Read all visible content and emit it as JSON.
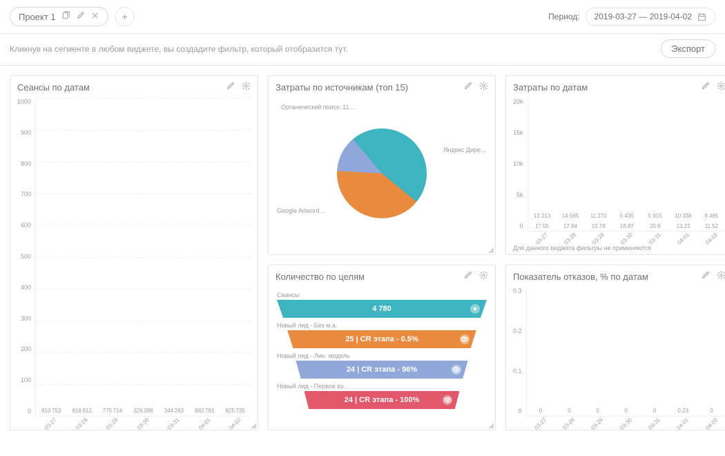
{
  "header": {
    "project_tab_label": "Проект 1",
    "period_label": "Период:",
    "period_range": "2019-03-27 — 2019-04-02"
  },
  "hintbar": {
    "hint": "Кликнув на сегменте в любом виджете, вы создадите фильтр, который отобразится тут.",
    "export_label": "Экспорт"
  },
  "colors": {
    "teal": "#3eb4c0",
    "teal_light": "#a8d8dc",
    "orange": "#e98b3f",
    "blue": "#8fa8d9",
    "crimson": "#e2576a",
    "grid": "#f0f0f2"
  },
  "sessions_chart": {
    "title": "Сеансы по датам",
    "type": "bar-grouped",
    "ylim": [
      0,
      1000
    ],
    "ytick_step": 100,
    "categories": [
      "03-27",
      "03-28",
      "03-29",
      "03-30",
      "03-31",
      "04-01",
      "04-02"
    ],
    "series": [
      {
        "color": "#3eb4c0",
        "values": [
          810,
          818,
          775,
          326,
          344,
          882,
          825
        ]
      },
      {
        "color": "#a8d8dc",
        "values": [
          753,
          812,
          714,
          288,
          283,
          781,
          735
        ]
      }
    ],
    "labels": [
      [
        "810",
        "753"
      ],
      [
        "818",
        "812"
      ],
      [
        "775",
        "714"
      ],
      [
        "326",
        "288"
      ],
      [
        "344",
        "283"
      ],
      [
        "882",
        "781"
      ],
      [
        "825",
        "735"
      ]
    ]
  },
  "spend_sources_chart": {
    "title": "Затраты по источникам (топ 15)",
    "type": "pie",
    "slices": [
      {
        "label": "Яндекс Дире…",
        "value": 47,
        "color": "#3eb4c0"
      },
      {
        "label": "Google Adword…",
        "value": 40,
        "color": "#e98b3f"
      },
      {
        "label": "Органический поиск: 11…",
        "value": 13,
        "color": "#8fa8d9"
      }
    ]
  },
  "spend_dates_chart": {
    "title": "Затраты по датам",
    "type": "bar",
    "ylim": [
      0,
      20000
    ],
    "ytick_labels": [
      "0",
      "5k",
      "10k",
      "15k",
      "20k"
    ],
    "categories": [
      "03-27",
      "03-28",
      "03-29",
      "03-30",
      "03-31",
      "04-01",
      "04-02"
    ],
    "values": [
      13213,
      14565,
      11270,
      5435,
      5915,
      10336,
      8465
    ],
    "top_labels": [
      "13 213",
      "14 565",
      "11 270",
      "5 435",
      "5 915",
      "10 336",
      "8 465"
    ],
    "bottom_labels": [
      "17.55",
      "17.94",
      "15.78",
      "18.87",
      "20.9",
      "13.23",
      "11.52"
    ],
    "footnote": "Для данного виджета фильтры не применяются"
  },
  "funnel_chart": {
    "title": "Количество по целям",
    "type": "funnel",
    "rows": [
      {
        "caption": "Сеансы",
        "value": "4 780",
        "color": "teal"
      },
      {
        "caption": "Новый лид - Без м.а.",
        "value": "25 | CR этапа - 0.5%",
        "color": "orange"
      },
      {
        "caption": "Новый лид - Лин. модель",
        "value": "24 | CR этапа - 96%",
        "color": "blue"
      },
      {
        "caption": "Новый лид - Первое вз.",
        "value": "24 | CR этапа - 100%",
        "color": "crimson"
      }
    ]
  },
  "bounce_chart": {
    "title": "Показатель отказов, % по датам",
    "type": "bar",
    "ylim": [
      0,
      0.3
    ],
    "ytick_labels": [
      "0",
      "0.1",
      "0.2",
      "0.3"
    ],
    "categories": [
      "03-27",
      "03-28",
      "03-29",
      "03-30",
      "03-31",
      "04-01",
      "04-02"
    ],
    "values": [
      0,
      0,
      0,
      0,
      0,
      0.23,
      0
    ],
    "top_labels": [
      "0",
      "0",
      "0",
      "0",
      "0",
      "0.23",
      "0"
    ]
  }
}
